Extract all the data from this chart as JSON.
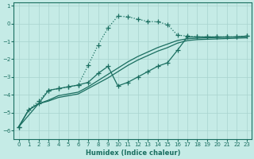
{
  "xlabel": "Humidex (Indice chaleur)",
  "background_color": "#c5ebe6",
  "grid_color": "#a8d4ce",
  "line_color": "#1a6e60",
  "xlim": [
    -0.5,
    23.5
  ],
  "ylim": [
    -6.5,
    1.2
  ],
  "yticks": [
    1,
    0,
    -1,
    -2,
    -3,
    -4,
    -5,
    -6
  ],
  "xticks": [
    0,
    1,
    2,
    3,
    4,
    5,
    6,
    7,
    8,
    9,
    10,
    11,
    12,
    13,
    14,
    15,
    16,
    17,
    18,
    19,
    20,
    21,
    22,
    23
  ],
  "line1_x": [
    0,
    1,
    2,
    3,
    4,
    5,
    6,
    7,
    8,
    9,
    10,
    11,
    12,
    13,
    14,
    15,
    16,
    17,
    18,
    19,
    20,
    21,
    22,
    23
  ],
  "line1_y": [
    -5.8,
    -4.85,
    -4.35,
    -3.75,
    -3.65,
    -3.55,
    -3.45,
    -2.35,
    -1.2,
    -0.25,
    0.42,
    0.38,
    0.25,
    0.12,
    0.1,
    -0.05,
    -0.65,
    -0.7,
    -0.75,
    -0.75,
    -0.75,
    -0.75,
    -0.75,
    -0.7
  ],
  "line2_x": [
    0,
    2,
    3,
    4,
    5,
    6,
    7,
    8,
    9,
    10,
    11,
    12,
    13,
    14,
    15,
    16,
    17,
    18,
    19,
    20,
    21,
    22,
    23
  ],
  "line2_y": [
    -5.8,
    -4.5,
    -3.75,
    -3.65,
    -3.55,
    -3.45,
    -3.3,
    -2.8,
    -2.4,
    -3.5,
    -3.3,
    -3.0,
    -2.7,
    -2.4,
    -2.2,
    -1.5,
    -0.75,
    -0.75,
    -0.75,
    -0.75,
    -0.75,
    -0.75,
    -0.7
  ],
  "line3_x": [
    0,
    1,
    2,
    3,
    4,
    5,
    6,
    7,
    8,
    9,
    10,
    11,
    12,
    13,
    14,
    15,
    16,
    17,
    18,
    19,
    20,
    21,
    22,
    23
  ],
  "line3_y": [
    -5.8,
    -4.85,
    -4.5,
    -4.3,
    -4.05,
    -3.95,
    -3.85,
    -3.55,
    -3.2,
    -2.85,
    -2.5,
    -2.15,
    -1.85,
    -1.6,
    -1.35,
    -1.15,
    -0.95,
    -0.85,
    -0.82,
    -0.8,
    -0.78,
    -0.76,
    -0.75,
    -0.72
  ],
  "line4_x": [
    0,
    1,
    2,
    3,
    4,
    5,
    6,
    7,
    8,
    9,
    10,
    11,
    12,
    13,
    14,
    15,
    16,
    17,
    18,
    19,
    20,
    21,
    22,
    23
  ],
  "line4_y": [
    -5.8,
    -4.85,
    -4.5,
    -4.35,
    -4.15,
    -4.05,
    -3.95,
    -3.65,
    -3.35,
    -3.05,
    -2.7,
    -2.35,
    -2.05,
    -1.8,
    -1.55,
    -1.35,
    -1.1,
    -0.95,
    -0.9,
    -0.88,
    -0.86,
    -0.84,
    -0.82,
    -0.8
  ]
}
